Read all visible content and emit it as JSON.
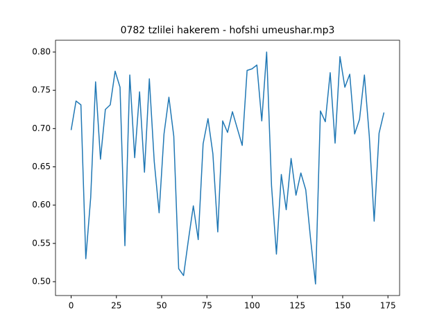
{
  "chart_data": {
    "type": "line",
    "title": "0782 tzlilei hakerem - hofshi umeushar.mp3",
    "x": [
      0,
      2.7,
      5.4,
      8.1,
      10.8,
      13.5,
      16.2,
      18.9,
      21.6,
      24.3,
      27,
      29.7,
      32.4,
      35.1,
      37.8,
      40.5,
      43.2,
      45.9,
      48.6,
      51.3,
      54,
      56.7,
      59.4,
      62.1,
      64.8,
      67.5,
      70.2,
      72.9,
      75.6,
      78.3,
      81,
      83.7,
      86.4,
      89.1,
      91.8,
      94.5,
      97.2,
      99.9,
      102.6,
      105.3,
      108,
      110.7,
      113.4,
      116.1,
      118.8,
      121.5,
      124.2,
      126.9,
      129.6,
      132.3,
      135,
      137.7,
      140.4,
      143.1,
      145.8,
      148.5,
      151.2,
      153.9,
      156.6,
      159.3,
      162,
      164.7,
      167.4,
      170.1,
      172.8
    ],
    "series": [
      {
        "color": "#1f77b4",
        "values": [
          0.698,
          0.736,
          0.731,
          0.53,
          0.61,
          0.761,
          0.66,
          0.725,
          0.731,
          0.775,
          0.754,
          0.547,
          0.77,
          0.662,
          0.748,
          0.643,
          0.765,
          0.657,
          0.59,
          0.693,
          0.741,
          0.69,
          0.517,
          0.508,
          0.555,
          0.599,
          0.555,
          0.68,
          0.713,
          0.667,
          0.565,
          0.71,
          0.695,
          0.722,
          0.7,
          0.678,
          0.776,
          0.778,
          0.783,
          0.71,
          0.8,
          0.625,
          0.536,
          0.64,
          0.594,
          0.661,
          0.613,
          0.642,
          0.62,
          0.555,
          0.497,
          0.723,
          0.709,
          0.773,
          0.681,
          0.794,
          0.754,
          0.771,
          0.693,
          0.712,
          0.77,
          0.69,
          0.579,
          0.694,
          0.721
        ]
      }
    ],
    "xlim": [
      -8.64,
      181.44
    ],
    "xticks": [
      0,
      25,
      50,
      75,
      100,
      125,
      150,
      175
    ],
    "ylim": [
      0.4819,
      0.8154
    ],
    "yticks": [
      {
        "value": 0.5,
        "label": "0.50"
      },
      {
        "value": 0.55,
        "label": "0.55"
      },
      {
        "value": 0.6,
        "label": "0.60"
      },
      {
        "value": 0.65,
        "label": "0.65"
      },
      {
        "value": 0.7,
        "label": "0.70"
      },
      {
        "value": 0.75,
        "label": "0.75"
      },
      {
        "value": 0.8,
        "label": "0.80"
      }
    ]
  }
}
